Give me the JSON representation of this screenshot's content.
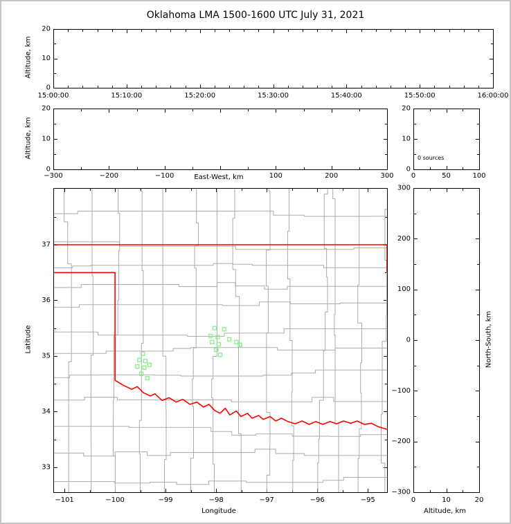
{
  "window": {
    "background": "#ffffff",
    "border_color": "#c4c4c4"
  },
  "title": "Oklahoma LMA 1500-1600 UTC July 31, 2021",
  "colors": {
    "axes": "#000000",
    "text": "#000000",
    "county_lines": "#ababab",
    "state_border": "#ff0000",
    "stations": "#90ee90"
  },
  "chart_data": [
    {
      "id": "time-altitude-panel",
      "type": "scatter",
      "xlabel": "",
      "ylabel": "Altitude, km",
      "x_axis": "time (UTC)",
      "xtick_labels": [
        "15:00:00",
        "15:10:00",
        "15:20:00",
        "15:30:00",
        "15:40:00",
        "15:50:00",
        "16:00:00"
      ],
      "ylim": [
        0,
        20
      ],
      "yticks": [
        0,
        10,
        20
      ],
      "points": []
    },
    {
      "id": "eastwest-altitude-panel",
      "type": "scatter",
      "xlabel": "East-West, km",
      "ylabel": "Altitude, km",
      "xlim": [
        -300,
        300
      ],
      "xticks": [
        -300,
        -200,
        -100,
        100,
        200,
        300
      ],
      "ylim": [
        0,
        20
      ],
      "yticks": [
        0,
        10,
        20
      ],
      "points": []
    },
    {
      "id": "altitude-histogram-panel",
      "type": "histogram",
      "annotation": "0 sources",
      "xlim": [
        0,
        100
      ],
      "xticks": [
        0,
        50,
        100
      ],
      "ylim": [
        0,
        20
      ],
      "yticks": [
        20,
        10,
        0
      ],
      "values": []
    },
    {
      "id": "plan-view-panel",
      "type": "scatter",
      "xlabel": "Longitude",
      "ylabel": "Latitude",
      "xlim": [
        -101.22,
        -94.62
      ],
      "xticks": [
        -101,
        -100,
        -99,
        -98,
        -97,
        -96,
        -95
      ],
      "ylim": [
        32.55,
        38.02
      ],
      "yticks": [
        33,
        34,
        35,
        36,
        37
      ],
      "points": [],
      "stations": [
        [
          -99.45,
          35.04
        ],
        [
          -99.52,
          34.93
        ],
        [
          -99.4,
          34.91
        ],
        [
          -99.56,
          34.81
        ],
        [
          -99.42,
          34.79
        ],
        [
          -99.32,
          34.84
        ],
        [
          -99.48,
          34.68
        ],
        [
          -99.36,
          34.6
        ],
        [
          -98.03,
          35.5
        ],
        [
          -97.84,
          35.48
        ],
        [
          -98.11,
          35.36
        ],
        [
          -97.97,
          35.34
        ],
        [
          -98.08,
          35.25
        ],
        [
          -97.95,
          35.21
        ],
        [
          -97.74,
          35.3
        ],
        [
          -97.6,
          35.25
        ],
        [
          -97.53,
          35.2
        ],
        [
          -98.0,
          35.11
        ],
        [
          -97.92,
          35.02
        ]
      ],
      "state_border": [
        [
          [
            -101.22,
            37.0
          ],
          [
            -94.62,
            37.0
          ]
        ],
        [
          [
            -94.62,
            37.0
          ],
          [
            -94.62,
            36.5
          ]
        ],
        [
          [
            -101.22,
            36.5
          ],
          [
            -100.0,
            36.5
          ],
          [
            -100.0,
            34.565
          ],
          [
            -99.85,
            34.48
          ],
          [
            -99.67,
            34.4
          ],
          [
            -99.56,
            34.45
          ],
          [
            -99.44,
            34.34
          ],
          [
            -99.3,
            34.28
          ],
          [
            -99.21,
            34.32
          ],
          [
            -99.07,
            34.2
          ],
          [
            -98.93,
            34.25
          ],
          [
            -98.79,
            34.17
          ],
          [
            -98.66,
            34.22
          ],
          [
            -98.52,
            34.13
          ],
          [
            -98.38,
            34.17
          ],
          [
            -98.25,
            34.08
          ],
          [
            -98.14,
            34.13
          ],
          [
            -98.03,
            34.02
          ],
          [
            -97.92,
            33.97
          ],
          [
            -97.82,
            34.06
          ],
          [
            -97.73,
            33.94
          ],
          [
            -97.6,
            34.01
          ],
          [
            -97.51,
            33.91
          ],
          [
            -97.38,
            33.97
          ],
          [
            -97.29,
            33.88
          ],
          [
            -97.16,
            33.93
          ],
          [
            -97.07,
            33.86
          ],
          [
            -96.93,
            33.91
          ],
          [
            -96.82,
            33.83
          ],
          [
            -96.71,
            33.88
          ],
          [
            -96.58,
            33.82
          ],
          [
            -96.44,
            33.78
          ],
          [
            -96.3,
            33.83
          ],
          [
            -96.16,
            33.77
          ],
          [
            -96.03,
            33.82
          ],
          [
            -95.89,
            33.77
          ],
          [
            -95.75,
            33.82
          ],
          [
            -95.62,
            33.78
          ],
          [
            -95.48,
            33.83
          ],
          [
            -95.34,
            33.79
          ],
          [
            -95.21,
            33.83
          ],
          [
            -95.07,
            33.77
          ],
          [
            -94.93,
            33.79
          ],
          [
            -94.8,
            33.73
          ],
          [
            -94.62,
            33.68
          ]
        ]
      ]
    },
    {
      "id": "northsouth-altitude-panel",
      "type": "scatter",
      "xlabel": "Altitude, km",
      "ylabel": "North-South, km",
      "xlim": [
        0,
        20
      ],
      "xticks": [
        0,
        10,
        20
      ],
      "ylim": [
        -300,
        300
      ],
      "yticks": [
        300,
        200,
        100,
        0,
        -100,
        -200,
        -300
      ],
      "points": []
    }
  ]
}
